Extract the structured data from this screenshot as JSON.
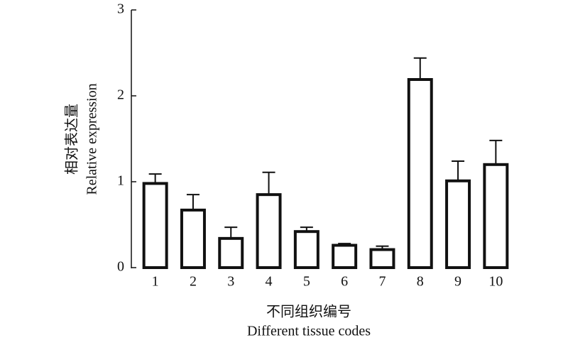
{
  "chart_data": {
    "type": "bar",
    "ylabel": [
      "相对表达量",
      "Relative expression"
    ],
    "xlabel": [
      "不同组织编号",
      "Different tissue codes"
    ],
    "categories": [
      "1",
      "2",
      "3",
      "4",
      "5",
      "6",
      "7",
      "8",
      "9",
      "10"
    ],
    "values": [
      0.98,
      0.67,
      0.34,
      0.85,
      0.42,
      0.26,
      0.21,
      2.19,
      1.01,
      1.2
    ],
    "errors": [
      0.11,
      0.18,
      0.13,
      0.26,
      0.05,
      0.02,
      0.04,
      0.25,
      0.23,
      0.28
    ],
    "color": "#ffffff",
    "ylim": [
      0,
      3
    ],
    "yticks": [
      0,
      1,
      2,
      3
    ]
  }
}
